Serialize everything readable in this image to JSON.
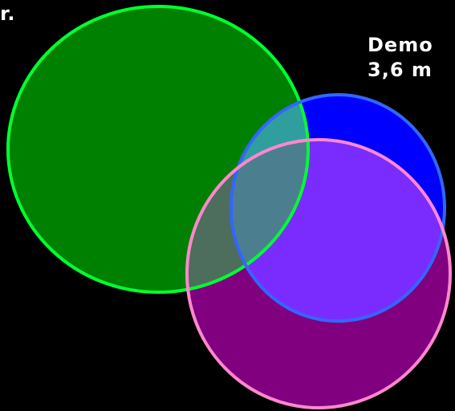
{
  "labels": {
    "top_left": "r.",
    "right_line1": "Demo",
    "right_line2": "3,6 m"
  },
  "circles": [
    {
      "name": "green-circle",
      "fill": "#008000",
      "stroke": "#00ff33"
    },
    {
      "name": "blue-circle",
      "fill": "#0000ff",
      "stroke": "#3366ff"
    },
    {
      "name": "purple-circle",
      "fill": "#800080",
      "stroke": "#ff88cc"
    }
  ],
  "overlap_colors": {
    "green_blue": "#2f9e9e",
    "green_purple": "#4d6d5d",
    "blue_purple": "#7a2cff",
    "all_three": "#4b7f8f"
  }
}
